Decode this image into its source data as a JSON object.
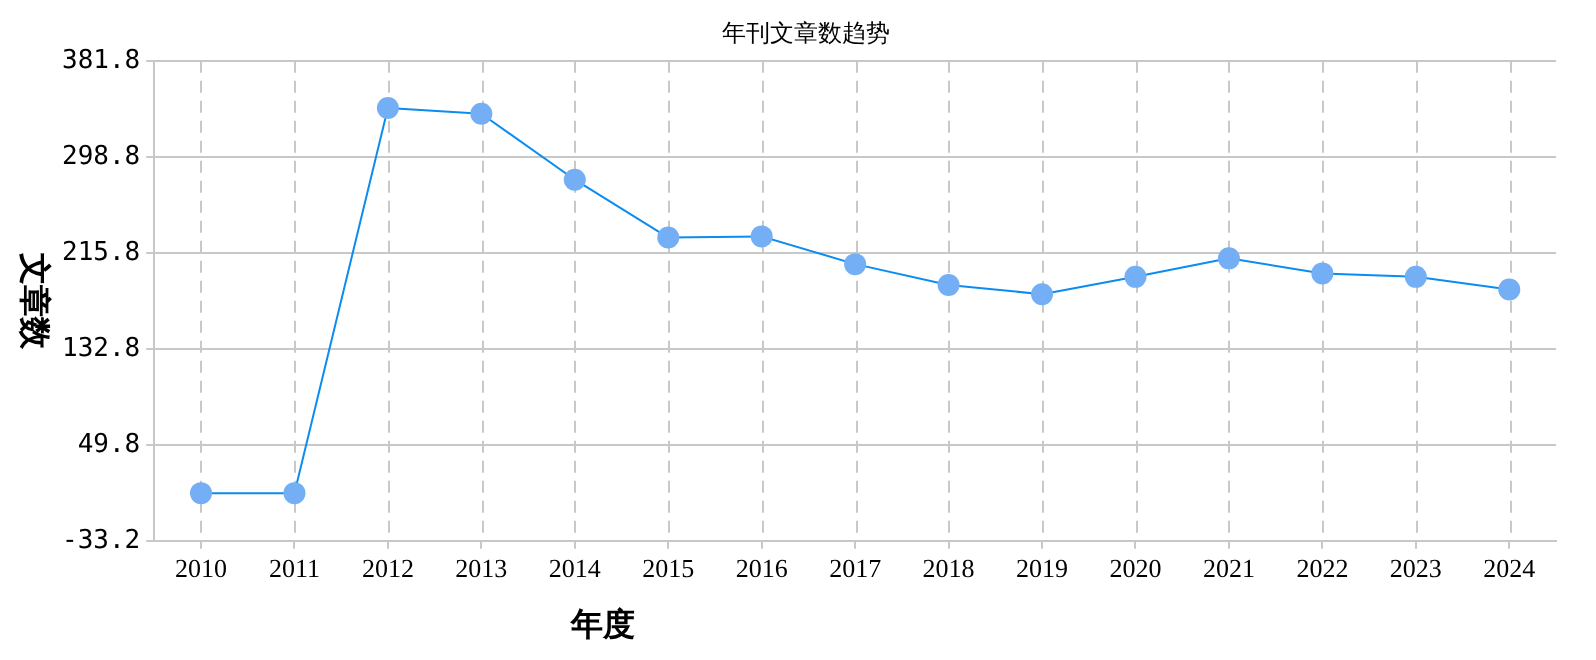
{
  "chart_data": {
    "type": "line",
    "title": "年刊文章数趋势",
    "xlabel": "年度",
    "ylabel": "文章数",
    "categories": [
      "2010",
      "2011",
      "2012",
      "2013",
      "2014",
      "2015",
      "2016",
      "2017",
      "2018",
      "2019",
      "2020",
      "2021",
      "2022",
      "2023",
      "2024"
    ],
    "series": [
      {
        "color": "#0a8cf0",
        "values": [
          8,
          8,
          341,
          336,
          279,
          229,
          230,
          206,
          188,
          180,
          195,
          211,
          198,
          195,
          184
        ]
      }
    ],
    "ylim": [
      -33.2,
      381.8
    ],
    "yticks": [
      -33.2,
      49.8,
      132.8,
      215.8,
      298.8,
      381.8
    ],
    "grid": true,
    "marker": "circle",
    "line_style": "solid",
    "legend": false
  }
}
